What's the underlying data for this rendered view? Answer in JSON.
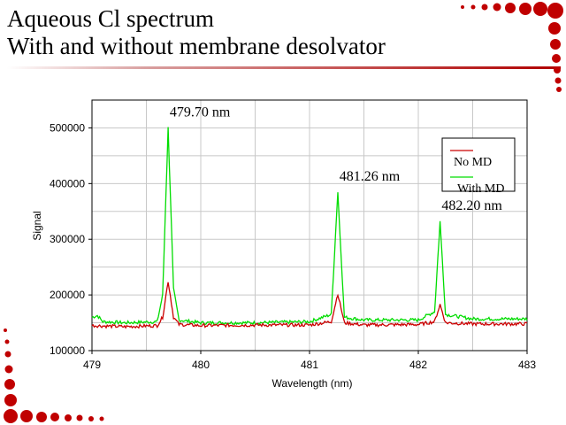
{
  "slide": {
    "title_line1": "Aqueous Cl spectrum",
    "title_line2": "With and without membrane desolvator"
  },
  "colors": {
    "accent_dots": "#c00000",
    "no_md": "#cc0000",
    "with_md": "#00dd00"
  },
  "chart_data": {
    "type": "line",
    "title": "",
    "xlabel": "Wavelength (nm)",
    "ylabel": "Signal",
    "xlim": [
      479,
      483
    ],
    "ylim": [
      100000,
      550000
    ],
    "x_ticks": [
      "479",
      "480",
      "481",
      "482",
      "483"
    ],
    "y_ticks": [
      "100000",
      "200000",
      "300000",
      "400000",
      "500000"
    ],
    "grid": true,
    "legend_position": "top-right",
    "series": [
      {
        "name": "No MD",
        "color": "#cc0000",
        "x": [
          479.0,
          479.3,
          479.6,
          479.65,
          479.7,
          479.75,
          479.8,
          480.0,
          480.5,
          481.0,
          481.2,
          481.26,
          481.32,
          481.5,
          482.0,
          482.15,
          482.2,
          482.25,
          482.5,
          483.0
        ],
        "y": [
          145000,
          143000,
          145000,
          160000,
          225000,
          160000,
          147000,
          145000,
          146000,
          146000,
          152000,
          202000,
          150000,
          146000,
          147000,
          152000,
          183000,
          150000,
          148000,
          148000
        ]
      },
      {
        "name": "With MD",
        "color": "#00dd00",
        "x": [
          479.0,
          479.05,
          479.1,
          479.3,
          479.6,
          479.65,
          479.7,
          479.75,
          479.8,
          480.0,
          480.5,
          481.0,
          481.2,
          481.26,
          481.32,
          481.5,
          482.0,
          482.15,
          482.2,
          482.25,
          482.5,
          483.0
        ],
        "y": [
          160000,
          163000,
          152000,
          150000,
          152000,
          200000,
          500000,
          210000,
          155000,
          150000,
          150000,
          152000,
          165000,
          385000,
          160000,
          155000,
          155000,
          170000,
          332000,
          165000,
          157000,
          157000
        ]
      }
    ],
    "annotations": [
      {
        "text": "479.70 nm",
        "x": 479.7,
        "y": 500000
      },
      {
        "text": "481.26 nm",
        "x": 481.26,
        "y": 385000
      },
      {
        "text": "482.20 nm",
        "x": 482.2,
        "y": 332000
      }
    ]
  }
}
